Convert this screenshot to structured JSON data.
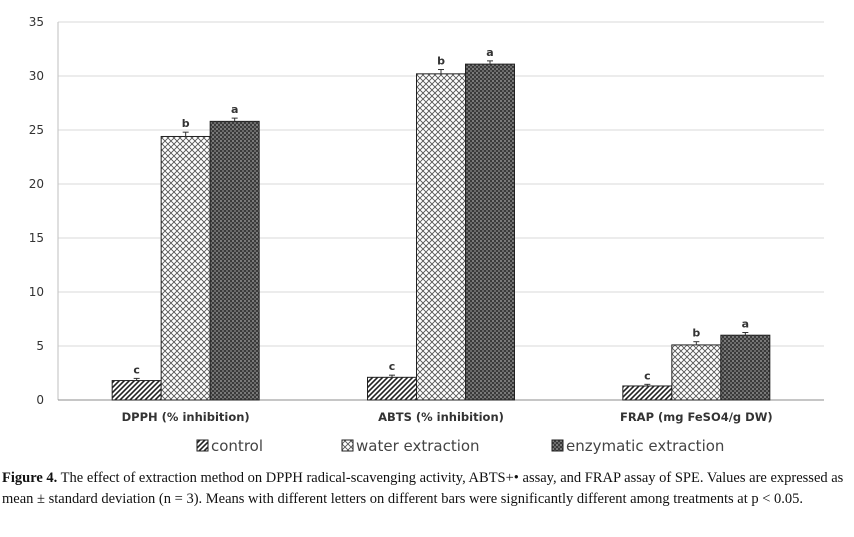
{
  "chart_data": {
    "type": "bar",
    "categories": [
      "DPPH (% inhibition)",
      "ABTS (% inhibition)",
      "FRAP (mg FeSO4/g DW)"
    ],
    "series": [
      {
        "name": "control",
        "values": [
          1.8,
          2.1,
          1.3
        ],
        "errors": [
          0.2,
          0.2,
          0.15
        ],
        "letters": [
          "c",
          "c",
          "c"
        ],
        "pattern": "diagonal-hatch"
      },
      {
        "name": "water extraction",
        "values": [
          24.4,
          30.2,
          5.1
        ],
        "errors": [
          0.4,
          0.4,
          0.3
        ],
        "letters": [
          "b",
          "b",
          "b"
        ],
        "pattern": "crosshatch"
      },
      {
        "name": "enzymatic extraction",
        "values": [
          25.8,
          31.1,
          6.0
        ],
        "errors": [
          0.3,
          0.3,
          0.25
        ],
        "letters": [
          "a",
          "a",
          "a"
        ],
        "pattern": "dark-checker"
      }
    ],
    "yticks": [
      "0",
      "5",
      "10",
      "15",
      "20",
      "25",
      "30",
      "35"
    ],
    "ylim": [
      0,
      35
    ],
    "grid": true,
    "legend_position": "bottom"
  },
  "caption": {
    "label": "Figure 4.",
    "text": " The effect of extraction method on DPPH radical-scavenging activity, ABTS+• assay, and FRAP assay of SPE. Values are expressed as mean ± standard deviation (n = 3). Means with different letters on different bars were significantly different among treatments at p < 0.05."
  }
}
